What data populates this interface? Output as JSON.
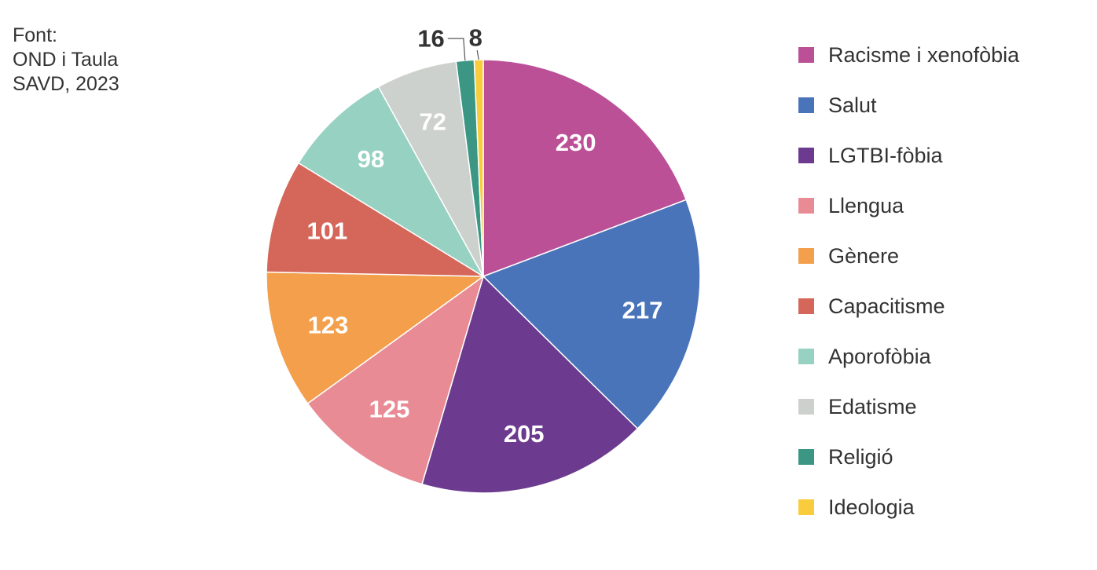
{
  "source": {
    "lines": [
      "Font:",
      "OND i Taula",
      "SAVD, 2023"
    ]
  },
  "chart_data": {
    "type": "pie",
    "title": "",
    "start_angle": "12 o'clock, clockwise",
    "slices": [
      {
        "label": "Racisme i xenofòbia",
        "value": 230,
        "color": "#bb5097"
      },
      {
        "label": "Salut",
        "value": 217,
        "color": "#4a74b9"
      },
      {
        "label": "LGTBI-fòbia",
        "value": 205,
        "color": "#6c3b8f"
      },
      {
        "label": "Llengua",
        "value": 125,
        "color": "#e98b95"
      },
      {
        "label": "Gènere",
        "value": 123,
        "color": "#f39f4b"
      },
      {
        "label": "Capacitisme",
        "value": 101,
        "color": "#d5665a"
      },
      {
        "label": "Aporofòbia",
        "value": 98,
        "color": "#97d1c2"
      },
      {
        "label": "Edatisme",
        "value": 72,
        "color": "#ccd1cd"
      },
      {
        "label": "Religió",
        "value": 16,
        "color": "#3b9684"
      },
      {
        "label": "Ideologia",
        "value": 8,
        "color": "#f8cc3c"
      }
    ],
    "legend_position": "right",
    "value_labels": [
      "230",
      "217",
      "205",
      "125",
      "123",
      "101",
      "98",
      "72",
      "16",
      "8"
    ]
  }
}
